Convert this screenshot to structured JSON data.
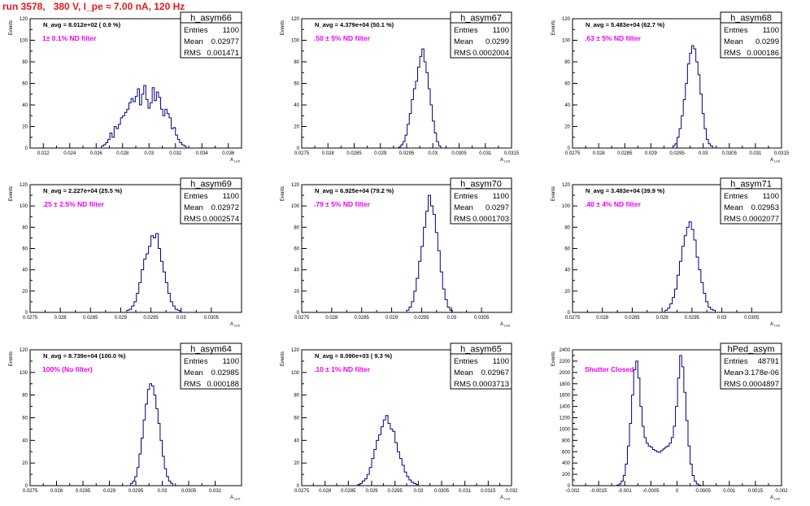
{
  "title": "run 3578,   380 V, I_pe ≈ 7.00 nA, 120 Hz",
  "colors": {
    "title": "#e8151b",
    "histogram": "#00007f",
    "filter_label": "#ee00ee"
  },
  "stats_labels": {
    "entries": "Entries",
    "mean": "Mean",
    "rms": "RMS"
  },
  "chart_data": [
    {
      "type": "histogram",
      "name": "h_asym66",
      "entries": "1100",
      "mean": "0.02977",
      "rms": "0.001471",
      "navg": "N_avg = 8.012e+02 ( 0.9 %)",
      "filter": "1± 0.1% ND filter",
      "ylabel": "Events",
      "xlabel": "A",
      "xlabel_sub": "LI/D",
      "xlim": [
        0.021,
        0.037
      ],
      "ylim": [
        0,
        120
      ],
      "xticks": [
        0.022,
        0.024,
        0.026,
        0.028,
        0.03,
        0.032,
        0.034,
        0.036
      ],
      "xticklabels": [
        "0.022",
        "0.024",
        "0.026",
        "0.028",
        "0.03",
        "0.032",
        "0.034",
        "0.036"
      ],
      "yticks": [
        0,
        20,
        40,
        60,
        80,
        100,
        120
      ],
      "bins": {
        "start": 0.0264,
        "width": 0.00016,
        "counts": [
          2,
          3,
          5,
          8,
          14,
          10,
          20,
          18,
          22,
          28,
          30,
          33,
          36,
          42,
          46,
          43,
          48,
          55,
          40,
          50,
          58,
          45,
          37,
          42,
          56,
          44,
          52,
          47,
          36,
          30,
          36,
          32,
          28,
          18,
          19,
          12,
          8,
          5,
          3,
          2
        ]
      }
    },
    {
      "type": "histogram",
      "name": "h_asym67",
      "entries": "1100",
      "mean": "0.0299",
      "rms": "0.0002004",
      "navg": "N_avg = 4.379e+04 (50.1 %)",
      "filter": ".50 ± 5% ND filter",
      "ylabel": "Events",
      "xlabel": "A",
      "xlabel_sub": "LI/D",
      "xlim": [
        0.0275,
        0.0315
      ],
      "ylim": [
        0,
        120
      ],
      "xticks": [
        0.0275,
        0.028,
        0.0285,
        0.029,
        0.0295,
        0.03,
        0.0305,
        0.031,
        0.0315
      ],
      "xticklabels": [
        "0.0275",
        "0.028",
        "0.0285",
        "0.029",
        "0.0295",
        "0.03",
        "0.0305",
        "0.031",
        "0.0315"
      ],
      "yticks": [
        0,
        20,
        40,
        60,
        80,
        100,
        120
      ],
      "bins": {
        "start": 0.02935,
        "width": 4e-05,
        "counts": [
          1,
          3,
          6,
          12,
          22,
          32,
          45,
          55,
          62,
          75,
          85,
          92,
          80,
          70,
          55,
          40,
          25,
          14,
          6,
          2
        ]
      }
    },
    {
      "type": "histogram",
      "name": "h_asym68",
      "entries": "1100",
      "mean": "0.0299",
      "rms": "0.000186",
      "navg": "N_avg = 5.483e+04 (62.7 %)",
      "filter": ".63 ± 5% ND filter",
      "ylabel": "Events",
      "xlabel": "A",
      "xlabel_sub": "LI/D",
      "xlim": [
        0.0275,
        0.0315
      ],
      "ylim": [
        0,
        120
      ],
      "xticks": [
        0.0275,
        0.028,
        0.0285,
        0.029,
        0.0295,
        0.03,
        0.0305,
        0.031,
        0.0315
      ],
      "xticklabels": [
        "0.0275",
        "0.028",
        "0.0285",
        "0.029",
        "0.0295",
        "0.03",
        "0.0305",
        "0.031",
        "0.0315"
      ],
      "yticks": [
        0,
        20,
        40,
        60,
        80,
        100,
        120
      ],
      "bins": {
        "start": 0.02942,
        "width": 4e-05,
        "counts": [
          2,
          4,
          10,
          18,
          30,
          45,
          60,
          78,
          88,
          95,
          92,
          80,
          68,
          50,
          32,
          18,
          8,
          4,
          2
        ]
      }
    },
    {
      "type": "histogram",
      "name": "h_asym69",
      "entries": "1100",
      "mean": "0.02972",
      "rms": "0.0002574",
      "navg": "N_avg = 2.227e+04 (25.5 %)",
      "filter": ".25 ± 2.5% ND filter",
      "ylabel": "Events",
      "xlabel": "A",
      "xlabel_sub": "LI/D",
      "xlim": [
        0.0275,
        0.031
      ],
      "ylim": [
        0,
        120
      ],
      "xticks": [
        0.0275,
        0.028,
        0.0285,
        0.029,
        0.0295,
        0.03,
        0.0305
      ],
      "xticklabels": [
        "0.0275",
        "0.028",
        "0.0285",
        "0.029",
        "0.0295",
        "0.03",
        "0.0305"
      ],
      "yticks": [
        0,
        20,
        40,
        60,
        80,
        100,
        120
      ],
      "bins": {
        "start": 0.0291,
        "width": 4e-05,
        "counts": [
          2,
          3,
          6,
          10,
          18,
          28,
          40,
          50,
          55,
          62,
          72,
          70,
          74,
          60,
          48,
          38,
          28,
          18,
          10,
          6,
          3,
          2
        ]
      }
    },
    {
      "type": "histogram",
      "name": "h_asym70",
      "entries": "1100",
      "mean": "0.0297",
      "rms": "0.0001703",
      "navg": "N_avg = 6.925e+04 (79.2 %)",
      "filter": ".79 ± 5% ND filter",
      "ylabel": "Events",
      "xlabel": "A",
      "xlabel_sub": "LI/D",
      "xlim": [
        0.0275,
        0.031
      ],
      "ylim": [
        0,
        120
      ],
      "xticks": [
        0.0275,
        0.028,
        0.0285,
        0.029,
        0.0295,
        0.03,
        0.0305
      ],
      "xticklabels": [
        "0.0275",
        "0.028",
        "0.0285",
        "0.029",
        "0.0295",
        "0.03",
        "0.0305"
      ],
      "yticks": [
        0,
        20,
        40,
        60,
        80,
        100,
        120
      ],
      "bins": {
        "start": 0.02925,
        "width": 4e-05,
        "counts": [
          2,
          5,
          10,
          20,
          32,
          48,
          62,
          80,
          95,
          110,
          100,
          92,
          75,
          58,
          38,
          22,
          12,
          5,
          2
        ]
      }
    },
    {
      "type": "histogram",
      "name": "h_asym71",
      "entries": "1100",
      "mean": "0.02953",
      "rms": "0.0002077",
      "navg": "N_avg = 3.483e+04 (39.9 %)",
      "filter": ".40 ± 4% ND filter",
      "ylabel": "Events",
      "xlabel": "A",
      "xlabel_sub": "LI/D",
      "xlim": [
        0.0275,
        0.031
      ],
      "ylim": [
        0,
        120
      ],
      "xticks": [
        0.0275,
        0.028,
        0.0285,
        0.029,
        0.0295,
        0.03,
        0.0305
      ],
      "xticklabels": [
        "0.0275",
        "0.028",
        "0.0285",
        "0.029",
        "0.0295",
        "0.03",
        "0.0305"
      ],
      "yticks": [
        0,
        20,
        40,
        60,
        80,
        100,
        120
      ],
      "bins": {
        "start": 0.02905,
        "width": 4e-05,
        "counts": [
          2,
          4,
          8,
          14,
          22,
          35,
          48,
          62,
          72,
          80,
          85,
          78,
          68,
          52,
          40,
          28,
          18,
          10,
          5,
          3,
          2
        ]
      }
    },
    {
      "type": "histogram",
      "name": "h_asym64",
      "entries": "1100",
      "mean": "0.02985",
      "rms": "0.000188",
      "navg": "N_avg = 8.739e+04 (100.0 %)",
      "filter": "100% (No filter)",
      "ylabel": "Events",
      "xlabel": "A",
      "xlabel_sub": "LI/D",
      "xlim": [
        0.0275,
        0.0315
      ],
      "ylim": [
        0,
        120
      ],
      "xticks": [
        0.0275,
        0.028,
        0.0285,
        0.029,
        0.0295,
        0.03,
        0.0305,
        0.031
      ],
      "xticklabels": [
        "0.0275",
        "0.028",
        "0.0285",
        "0.029",
        "0.0295",
        "0.03",
        "0.0305",
        "0.031"
      ],
      "yticks": [
        0,
        20,
        40,
        60,
        80,
        100,
        120
      ],
      "bins": {
        "start": 0.0294,
        "width": 4e-05,
        "counts": [
          2,
          4,
          8,
          16,
          28,
          42,
          58,
          72,
          85,
          90,
          88,
          80,
          68,
          55,
          40,
          26,
          15,
          8,
          4,
          2
        ]
      }
    },
    {
      "type": "histogram",
      "name": "h_asym65",
      "entries": "1100",
      "mean": "0.02967",
      "rms": "0.0003713",
      "navg": "N_avg = 8.090e+03 ( 9.3 %)",
      "filter": ".10 ± 1% ND filter",
      "ylabel": "Events",
      "xlabel": "A",
      "xlabel_sub": "LI/D",
      "xlim": [
        0.0275,
        0.032
      ],
      "ylim": [
        0,
        120
      ],
      "xticks": [
        0.0275,
        0.028,
        0.0285,
        0.029,
        0.0295,
        0.03,
        0.0305,
        0.031,
        0.0315,
        0.032
      ],
      "xticklabels": [
        "0.0275",
        "0.028",
        "0.0285",
        "0.029",
        "0.0295",
        "0.03",
        "0.0305",
        "0.031",
        "0.0315",
        "0.032"
      ],
      "yticks": [
        0,
        20,
        40,
        60,
        80,
        100,
        120
      ],
      "bins": {
        "start": 0.0287,
        "width": 5e-05,
        "counts": [
          1,
          2,
          4,
          6,
          10,
          16,
          24,
          32,
          40,
          45,
          52,
          58,
          62,
          55,
          50,
          48,
          38,
          30,
          24,
          18,
          12,
          8,
          5,
          3,
          2,
          1
        ]
      }
    },
    {
      "type": "histogram",
      "name": "hPed_asym",
      "entries": "48791",
      "mean": "-3.178e-06",
      "rms": "0.0004897",
      "navg": "",
      "filter": "Shutter Closed",
      "ylabel": "Events",
      "xlabel": "A",
      "xlabel_sub": "LI/D",
      "xlim": [
        -0.002,
        0.002
      ],
      "ylim": [
        0,
        2400
      ],
      "xticks": [
        -0.002,
        -0.0015,
        -0.001,
        -0.0005,
        0,
        0.0005,
        0.001,
        0.0015,
        0.002
      ],
      "xticklabels": [
        "-0.002",
        "-0.0015",
        "-0.001",
        "-0.0005",
        "0",
        "0.0005",
        "0.001",
        "0.0015",
        "0.002"
      ],
      "yticks": [
        0,
        200,
        400,
        600,
        800,
        1000,
        1200,
        1400,
        1600,
        1800,
        2000,
        2200,
        2400
      ],
      "bins": {
        "start": -0.00115,
        "width": 4e-05,
        "counts": [
          10,
          30,
          80,
          180,
          380,
          700,
          1100,
          1600,
          2050,
          2200,
          1900,
          1400,
          1050,
          850,
          750,
          700,
          680,
          640,
          620,
          600,
          590,
          620,
          650,
          680,
          700,
          750,
          850,
          1050,
          1400,
          1900,
          2300,
          2100,
          1650,
          1150,
          700,
          380,
          180,
          80,
          30,
          10
        ]
      }
    }
  ]
}
